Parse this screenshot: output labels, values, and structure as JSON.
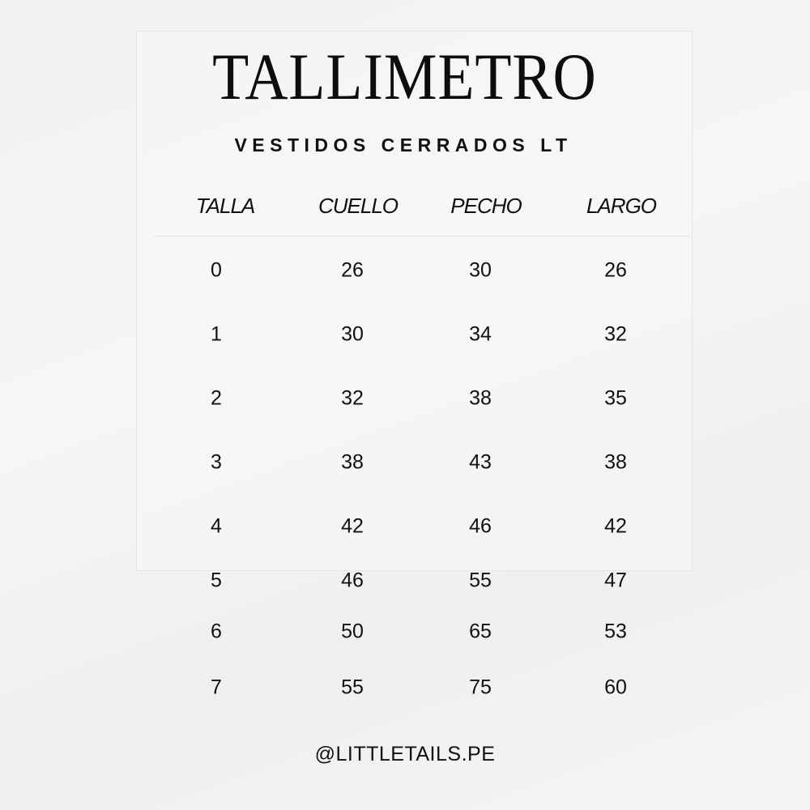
{
  "title": "TALLIMETRO",
  "subtitle": "VESTIDOS CERRADOS LT",
  "table": {
    "headers": [
      "TALLA",
      "CUELLO",
      "PECHO",
      "LARGO"
    ],
    "rows": [
      [
        "0",
        "26",
        "30",
        "26"
      ],
      [
        "1",
        "30",
        "34",
        "32"
      ],
      [
        "2",
        "32",
        "38",
        "35"
      ],
      [
        "3",
        "38",
        "43",
        "38"
      ],
      [
        "4",
        "42",
        "46",
        "42"
      ],
      [
        "5",
        "46",
        "55",
        "47"
      ],
      [
        "6",
        "50",
        "65",
        "53"
      ],
      [
        "7",
        "55",
        "75",
        "60"
      ]
    ]
  },
  "footer": "@LITTLETAILS.PE"
}
